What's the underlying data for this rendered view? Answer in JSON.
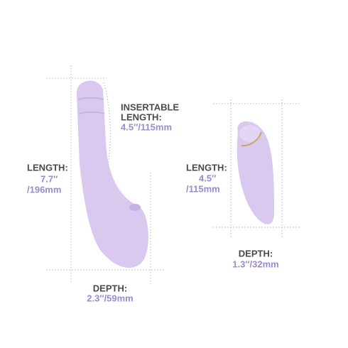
{
  "left_product": {
    "insertable_length": {
      "label": [
        "INSERTABLE",
        "LENGTH:"
      ],
      "value": "4.5″/115mm"
    },
    "length": {
      "label": "LENGTH:",
      "value": [
        "7.7″",
        "/196mm"
      ]
    },
    "depth": {
      "label": "DEPTH:",
      "value": "2.3″/59mm"
    }
  },
  "right_product": {
    "length": {
      "label": "LENGTH:",
      "value": [
        "4.5″",
        "/115mm"
      ]
    },
    "depth": {
      "label": "DEPTH:",
      "value": "1.3″/32mm"
    }
  }
}
